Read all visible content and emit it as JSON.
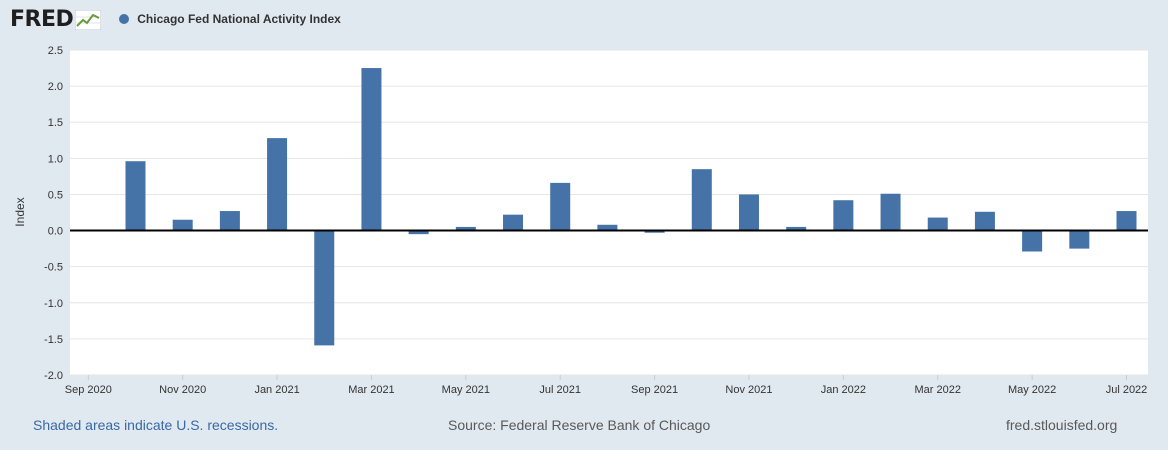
{
  "brand": {
    "logo_text": "FRED"
  },
  "colors": {
    "series": "#4572a7",
    "link": "#3968a6",
    "background": "#e1e9f0",
    "plot": "#ffffff"
  },
  "legend": {
    "label": "Chicago Fed National Activity Index"
  },
  "footer": {
    "recessions_note": "Shaded areas indicate U.S. recessions.",
    "source": "Source: Federal Reserve Bank of Chicago",
    "site": "fred.stlouisfed.org"
  },
  "chart_data": {
    "type": "bar",
    "title": "",
    "xlabel": "",
    "ylabel": "Index",
    "ylim": [
      -2.0,
      2.5
    ],
    "yticks": [
      "2.5",
      "2.0",
      "1.5",
      "1.0",
      "0.5",
      "0.0",
      "-0.5",
      "-1.0",
      "-1.5",
      "-2.0"
    ],
    "xticks": [
      "Sep 2020",
      "Nov 2020",
      "Jan 2021",
      "Mar 2021",
      "May 2021",
      "Jul 2021",
      "Sep 2021",
      "Nov 2021",
      "Jan 2022",
      "Mar 2022",
      "May 2022",
      "Jul 2022"
    ],
    "grid": true,
    "series": [
      {
        "name": "Chicago Fed National Activity Index",
        "categories": [
          "Oct 2020",
          "Nov 2020",
          "Dec 2020",
          "Jan 2021",
          "Feb 2021",
          "Mar 2021",
          "Apr 2021",
          "May 2021",
          "Jun 2021",
          "Jul 2021",
          "Aug 2021",
          "Sep 2021",
          "Oct 2021",
          "Nov 2021",
          "Dec 2021",
          "Jan 2022",
          "Feb 2022",
          "Mar 2022",
          "Apr 2022",
          "May 2022",
          "Jun 2022",
          "Jul 2022"
        ],
        "values": [
          0.96,
          0.15,
          0.27,
          1.28,
          -1.59,
          2.25,
          -0.05,
          0.05,
          0.22,
          0.66,
          0.08,
          -0.03,
          0.85,
          0.5,
          0.05,
          0.42,
          0.51,
          0.18,
          0.26,
          -0.29,
          -0.25,
          0.27
        ]
      }
    ]
  }
}
